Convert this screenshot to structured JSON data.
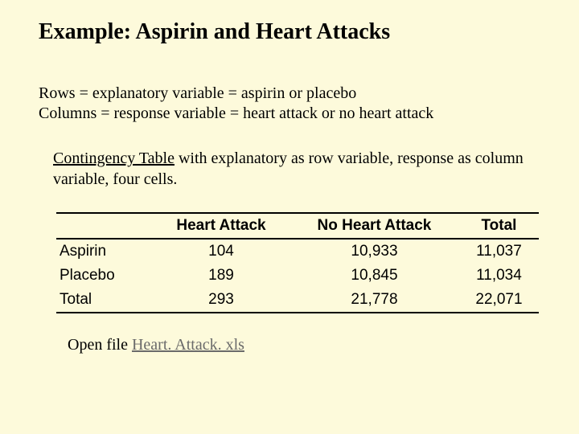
{
  "background_color": "#fdfadb",
  "title": "Example: Aspirin and Heart Attacks",
  "definitions": {
    "rows_line": "Rows = explanatory variable = aspirin or placebo",
    "cols_line": "Columns = response variable = heart attack or no heart attack"
  },
  "description": {
    "underlined_term": "Contingency Table",
    "rest": " with explanatory as row variable, response as column variable, four cells."
  },
  "table": {
    "header_font_family": "Arial",
    "header_font_weight": "bold",
    "border_color": "#000000",
    "columns": [
      "",
      "Heart Attack",
      "No Heart Attack",
      "Total"
    ],
    "rows": [
      {
        "label": "Aspirin",
        "values": [
          "104",
          "10,933",
          "11,037"
        ]
      },
      {
        "label": "Placebo",
        "values": [
          "189",
          "10,845",
          "11,034"
        ]
      },
      {
        "label": "Total",
        "values": [
          "293",
          "21,778",
          "22,071"
        ]
      }
    ]
  },
  "link": {
    "prefix": "Open file ",
    "text": "Heart. Attack. xls",
    "link_color": "#6a6a6a"
  }
}
